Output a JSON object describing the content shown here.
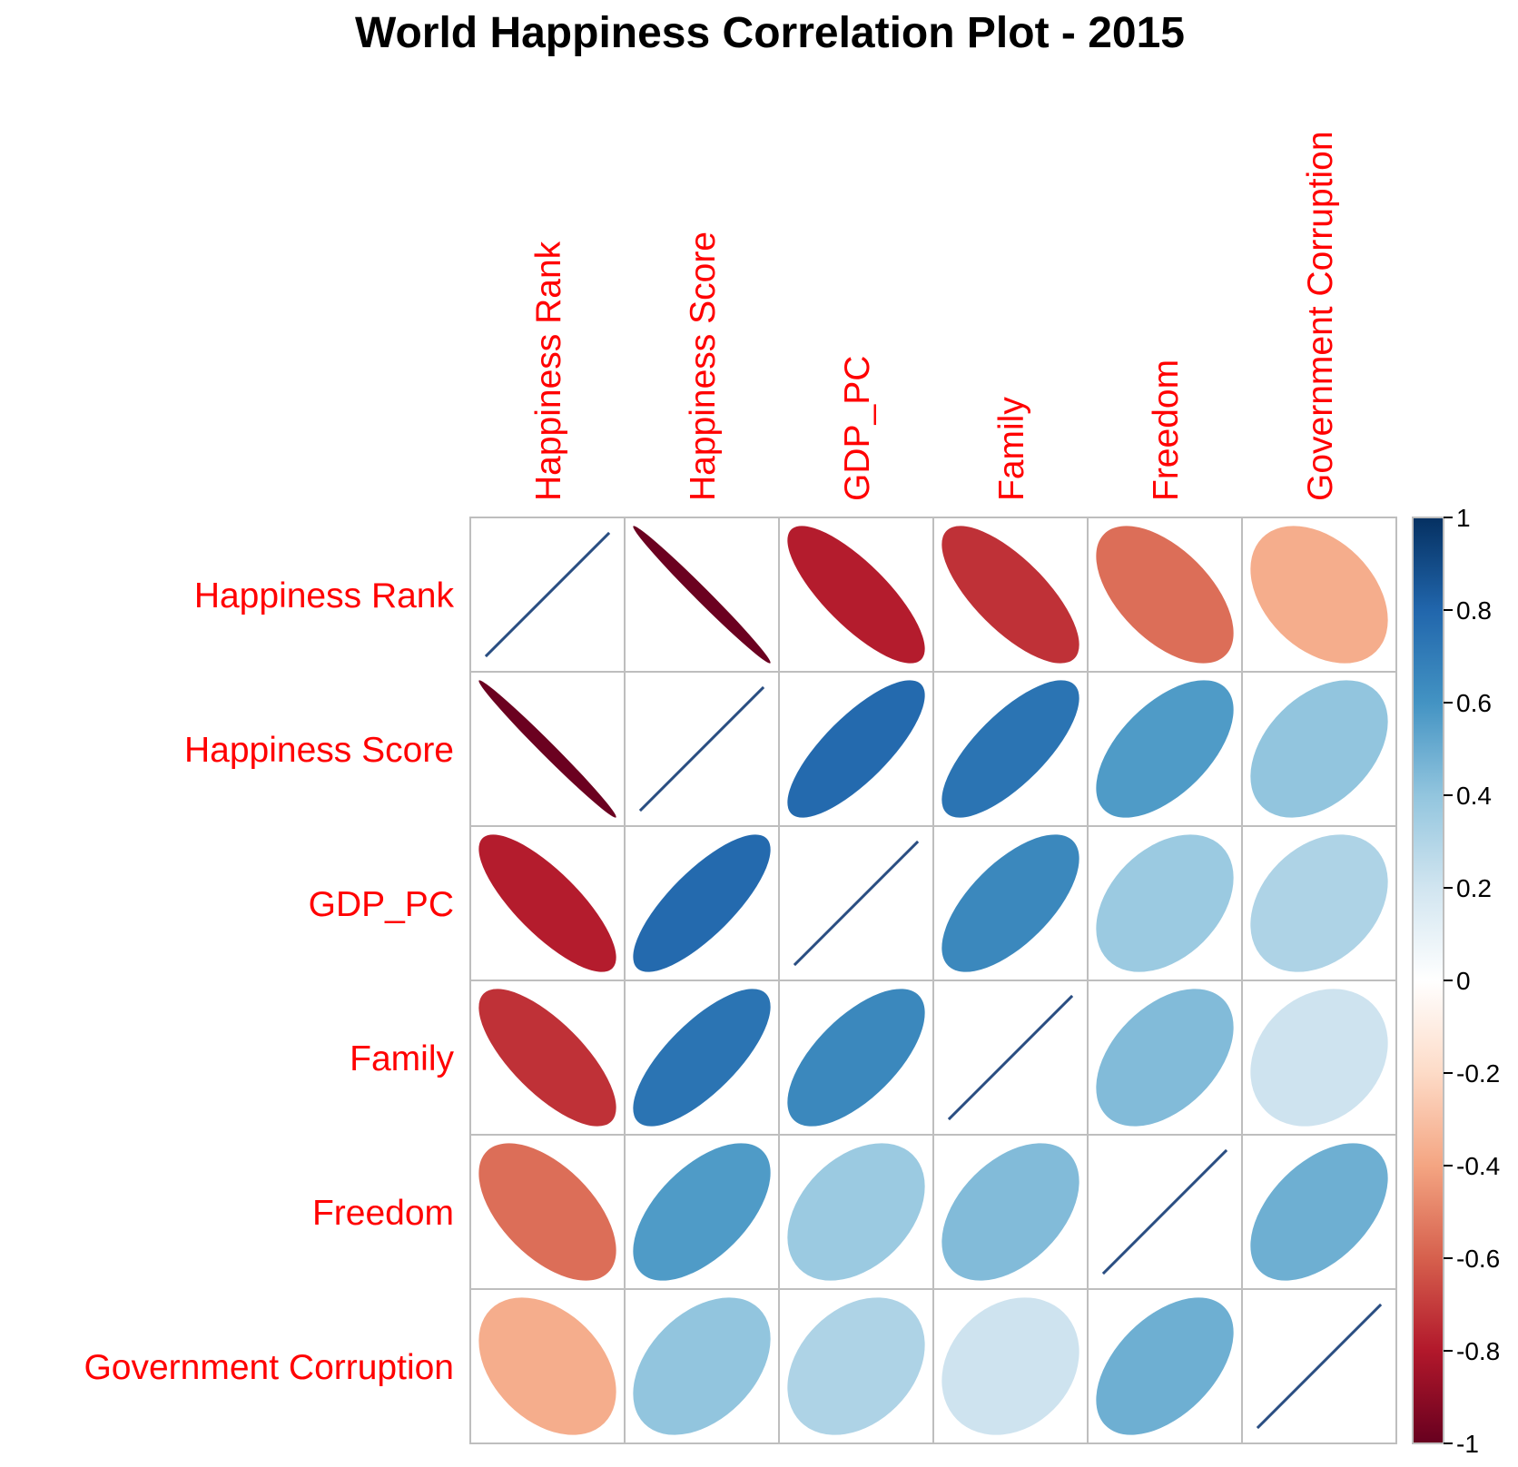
{
  "chart_data": {
    "type": "heatmap",
    "method": "ellipse",
    "title": "World Happiness Correlation Plot - 2015",
    "variables": [
      "Happiness Rank",
      "Happiness Score",
      "GDP_PC",
      "Family",
      "Freedom",
      "Government Corruption"
    ],
    "matrix": [
      [
        1.0,
        -0.99,
        -0.79,
        -0.73,
        -0.56,
        -0.37
      ],
      [
        -0.99,
        1.0,
        0.78,
        0.74,
        0.57,
        0.4
      ],
      [
        -0.79,
        0.78,
        1.0,
        0.65,
        0.37,
        0.31
      ],
      [
        -0.73,
        0.74,
        0.65,
        1.0,
        0.44,
        0.21
      ],
      [
        -0.56,
        0.57,
        0.37,
        0.44,
        1.0,
        0.49
      ],
      [
        -0.37,
        0.4,
        0.31,
        0.21,
        0.49,
        1.0
      ]
    ],
    "colorbar": {
      "ticks": [
        "1",
        "0.8",
        "0.6",
        "0.4",
        "0.2",
        "0",
        "-0.2",
        "-0.4",
        "-0.6",
        "-0.8",
        "-1"
      ],
      "range": [
        -1,
        1
      ],
      "placement": "right"
    },
    "colors": {
      "label": "#ff0000",
      "diagonal_line": "#2a4e82",
      "grid": "#bebebe",
      "palette": [
        "#67001f",
        "#b2182b",
        "#d6604d",
        "#f4a582",
        "#fddbc7",
        "#ffffff",
        "#d1e5f0",
        "#92c5de",
        "#4393c3",
        "#2166ac",
        "#053061"
      ]
    }
  }
}
